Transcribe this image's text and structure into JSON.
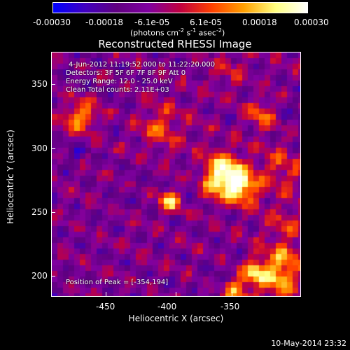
{
  "colorbar": {
    "ticks": [
      "-0.00030",
      "-0.00018",
      "-6.1e-05",
      "6.1e-05",
      "0.00018",
      "0.00030"
    ],
    "units_prefix": "(photons cm",
    "units_exp1": "-2",
    "units_mid1": " s",
    "units_exp2": "-1",
    "units_mid2": " asec",
    "units_exp3": "-2",
    "units_suffix": ")",
    "colors": [
      "#0000ff",
      "#4000c0",
      "#600080",
      "#8000a0",
      "#c00040",
      "#ff4000",
      "#ffa000",
      "#ffff80",
      "#ffffff"
    ]
  },
  "title": "Reconstructed RHESSI Image",
  "info": {
    "line1": "4-Jun-2012 11:19:52.000 to 11:22:20.000",
    "line2": "Detectors: 3F 5F 6F 7F 8F 9F  Att 0",
    "line3": "Energy Range: 12.0 - 25.0 keV",
    "line4": "Clean     Total counts: 2.11E+03",
    "peak": "Position of Peak = [-354,194]"
  },
  "axes": {
    "xlabel": "Heliocentric X (arcsec)",
    "ylabel": "Heliocentric Y (arcsec)",
    "xticks": [
      "-450",
      "-400",
      "-350"
    ],
    "yticks": [
      "350",
      "300",
      "250",
      "200"
    ]
  },
  "timestamp": "10-May-2014 23:32"
}
